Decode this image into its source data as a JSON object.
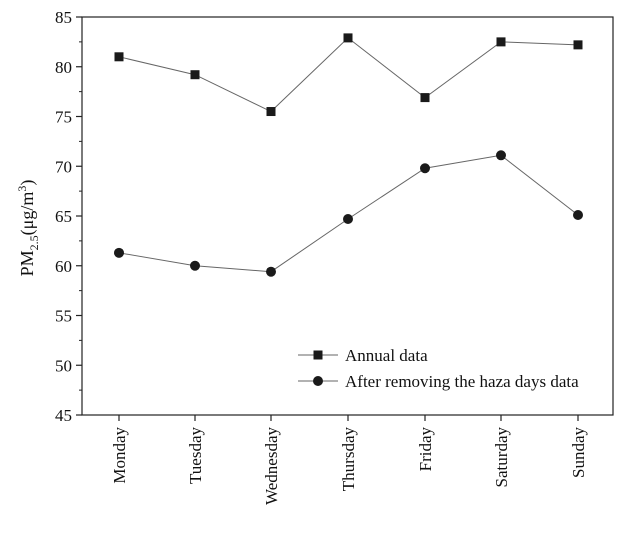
{
  "chart_data": {
    "type": "line",
    "categories": [
      "Monday",
      "Tuesday",
      "Wednesday",
      "Thursday",
      "Friday",
      "Saturday",
      "Sunday"
    ],
    "series": [
      {
        "name": "Annual data",
        "marker": "square",
        "color": "#1a1a1a",
        "values": [
          81.0,
          79.2,
          75.5,
          82.9,
          76.9,
          82.5,
          82.2
        ]
      },
      {
        "name": "After removing the haza days data",
        "marker": "circle",
        "color": "#1a1a1a",
        "values": [
          61.3,
          60.0,
          59.4,
          64.7,
          69.8,
          71.1,
          65.1
        ]
      }
    ],
    "ylabel": {
      "main": "PM",
      "sub": "2.5",
      "unit": "(μg/m",
      "sup": "3",
      "close": ")"
    },
    "xlabel": "",
    "ylim": [
      45,
      85
    ],
    "yticks": [
      45,
      50,
      55,
      60,
      65,
      70,
      75,
      80,
      85
    ],
    "grid": false,
    "legend_position": "lower-right",
    "line_color": "#666666"
  }
}
